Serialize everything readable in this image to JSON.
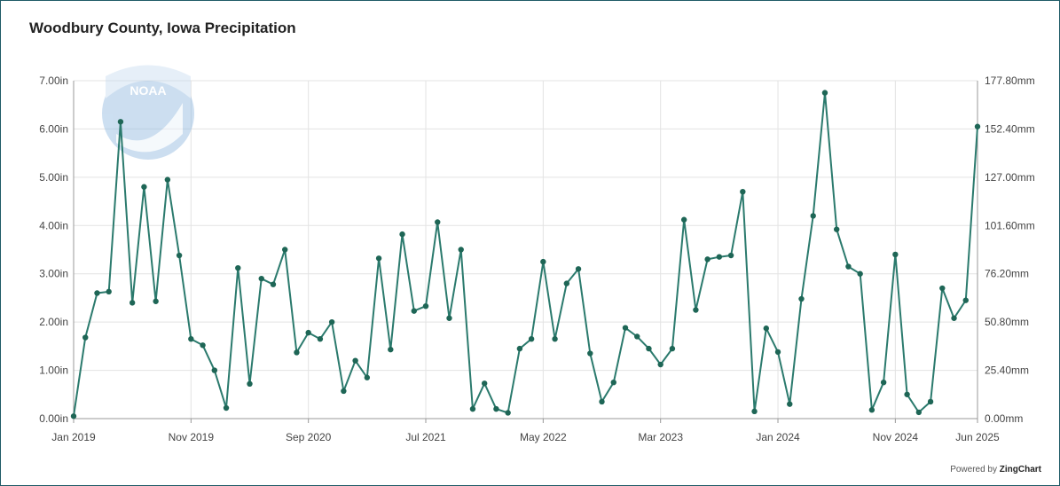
{
  "title": "Woodbury County, Iowa Precipitation",
  "footer": {
    "prefix": "Powered by",
    "brand": "ZingChart"
  },
  "logo_text": "NOAA",
  "colors": {
    "line": "#2b7a6d",
    "marker": "#1e6656",
    "grid": "#e3e3e3",
    "border": "#1f5a66"
  },
  "chart_data": {
    "type": "line",
    "title": "Woodbury County, Iowa Precipitation",
    "x_start": "Jan 2019",
    "x_tick_labels": [
      "Jan 2019",
      "Nov 2019",
      "Sep 2020",
      "Jul 2021",
      "May 2022",
      "Mar 2023",
      "Jan 2024",
      "Nov 2024",
      "Jun 2025"
    ],
    "y_left_ticks": [
      "0.00in",
      "1.00in",
      "2.00in",
      "3.00in",
      "4.00in",
      "5.00in",
      "6.00in",
      "7.00in"
    ],
    "y_right_ticks": [
      "0.00mm",
      "25.40mm",
      "50.80mm",
      "76.20mm",
      "101.60mm",
      "127.00mm",
      "152.40mm",
      "177.80mm"
    ],
    "ylim": [
      0,
      7
    ],
    "grid": true,
    "months": [
      "2019-01",
      "2019-02",
      "2019-03",
      "2019-04",
      "2019-05",
      "2019-06",
      "2019-07",
      "2019-08",
      "2019-09",
      "2019-10",
      "2019-11",
      "2019-12",
      "2020-01",
      "2020-02",
      "2020-03",
      "2020-04",
      "2020-05",
      "2020-06",
      "2020-07",
      "2020-08",
      "2020-09",
      "2020-10",
      "2020-11",
      "2020-12",
      "2021-01",
      "2021-02",
      "2021-03",
      "2021-04",
      "2021-05",
      "2021-06",
      "2021-07",
      "2021-08",
      "2021-09",
      "2021-10",
      "2021-11",
      "2021-12",
      "2022-01",
      "2022-02",
      "2022-03",
      "2022-04",
      "2022-05",
      "2022-06",
      "2022-07",
      "2022-08",
      "2022-09",
      "2022-10",
      "2022-11",
      "2022-12",
      "2023-01",
      "2023-02",
      "2023-03",
      "2023-04",
      "2023-05",
      "2023-06",
      "2023-07",
      "2023-08",
      "2023-09",
      "2023-10",
      "2023-11",
      "2023-12",
      "2024-01",
      "2024-02",
      "2024-03",
      "2024-04",
      "2024-05",
      "2024-06",
      "2024-07",
      "2024-08",
      "2024-09",
      "2024-10",
      "2024-11",
      "2024-12",
      "2025-01",
      "2025-02",
      "2025-03",
      "2025-04",
      "2025-05",
      "2025-06"
    ],
    "values": [
      0.05,
      1.68,
      2.6,
      2.63,
      6.15,
      2.4,
      4.8,
      2.43,
      4.95,
      3.38,
      1.65,
      1.52,
      1.0,
      0.22,
      3.12,
      0.72,
      2.9,
      2.78,
      3.5,
      1.37,
      1.78,
      1.65,
      2.0,
      0.57,
      1.2,
      0.85,
      3.32,
      1.43,
      3.82,
      2.23,
      2.33,
      4.07,
      2.08,
      3.5,
      0.2,
      0.73,
      0.2,
      0.12,
      1.45,
      1.65,
      3.25,
      1.65,
      2.8,
      3.1,
      1.35,
      0.35,
      0.75,
      1.88,
      1.7,
      1.45,
      1.12,
      1.45,
      4.12,
      2.25,
      3.3,
      3.35,
      3.38,
      4.7,
      0.15,
      1.87,
      1.38,
      0.3,
      2.48,
      4.2,
      6.75,
      3.92,
      3.15,
      3.0,
      0.18,
      0.75,
      3.4,
      0.5,
      0.13,
      0.35,
      2.7,
      2.08,
      2.45,
      6.05
    ]
  }
}
